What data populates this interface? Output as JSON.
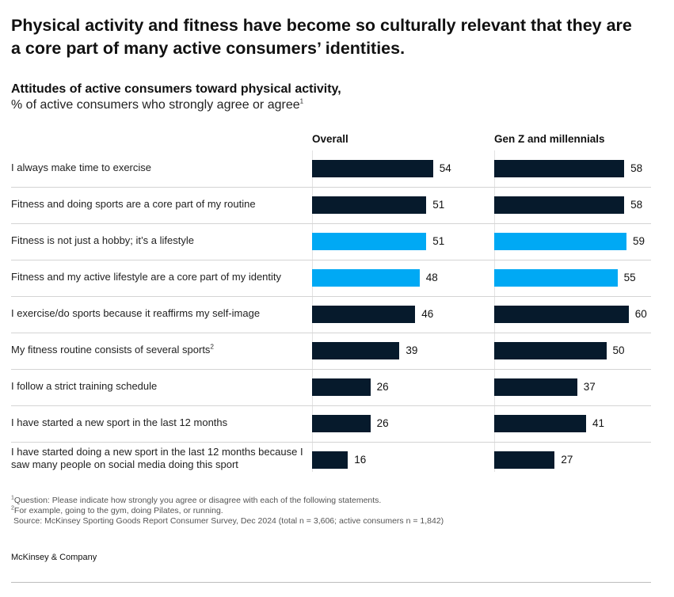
{
  "headline": "Physical activity and fitness have become so culturally relevant that they are a core part of many active consumers’ identities.",
  "chart_title": "Attitudes of active consumers toward physical activity,",
  "chart_subtitle": "% of active consumers who strongly agree or agree",
  "chart_subtitle_note": "1",
  "chart_data": {
    "type": "bar",
    "orientation": "horizontal",
    "categories": [
      "I always make time to exercise",
      "Fitness and doing sports are a core part of my routine",
      "Fitness is not just a hobby; it’s a lifestyle",
      "Fitness and my active lifestyle are a core part of my identity",
      "I exercise/do sports because it reaffirms my self-image",
      "My fitness routine consists of several sports",
      "I follow a strict training schedule",
      "I have started a new sport in the last 12 months",
      "I have started doing a new sport in the last 12 months because I saw many people on social media doing this sport"
    ],
    "category_notes": [
      "",
      "",
      "",
      "",
      "",
      "2",
      "",
      "",
      ""
    ],
    "series": [
      {
        "name": "Overall",
        "values": [
          54,
          51,
          51,
          48,
          46,
          39,
          26,
          26,
          16
        ]
      },
      {
        "name": "Gen Z and millennials",
        "values": [
          58,
          58,
          59,
          55,
          60,
          50,
          37,
          41,
          27
        ]
      }
    ],
    "highlighted_rows": [
      2,
      3
    ],
    "colors": {
      "default": "#061a2c",
      "highlight": "#00a9f4"
    },
    "xlim": [
      0,
      60
    ]
  },
  "footnotes": [
    "Question: Please indicate how strongly you agree or disagree with each of the following statements.",
    "For example, going to the gym, doing Pilates, or running.",
    "Source: McKinsey Sporting Goods Report Consumer Survey, Dec 2024 (total n = 3,606; active consumers n = 1,842)"
  ],
  "brand": "McKinsey & Company"
}
